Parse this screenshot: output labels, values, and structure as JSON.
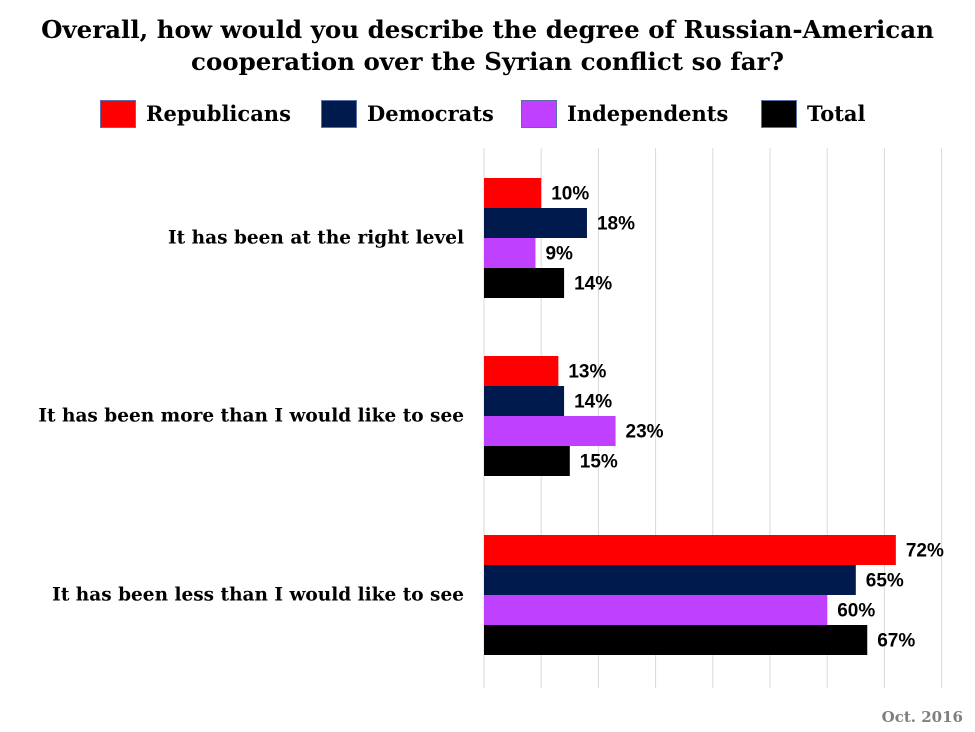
{
  "chart_data": {
    "type": "bar",
    "orientation": "horizontal",
    "title_lines": [
      "Overall, how would you describe the degree of Russian-American",
      "cooperation over the Syrian conflict so far?"
    ],
    "categories": [
      "It has been at the right level",
      "It has been more than I would like to see",
      "It has been less than I would like to see"
    ],
    "series": [
      {
        "name": "Republicans",
        "color": "#ff0000",
        "values": [
          10,
          13,
          72
        ],
        "labels": [
          "10%",
          "13%",
          "72%"
        ]
      },
      {
        "name": "Democrats",
        "color": "#001a4d",
        "values": [
          18,
          14,
          65
        ],
        "labels": [
          "18%",
          "14%",
          "65%"
        ]
      },
      {
        "name": "Independents",
        "color": "#bf40ff",
        "values": [
          9,
          23,
          60
        ],
        "labels": [
          "9%",
          "23%",
          "60%"
        ]
      },
      {
        "name": "Total",
        "color": "#000000",
        "values": [
          14,
          15,
          67
        ],
        "labels": [
          "14%",
          "15%",
          "67%"
        ]
      }
    ],
    "xlim": [
      0,
      80
    ],
    "grid": true,
    "legend_placement": "top",
    "footnote": "Oct. 2016"
  }
}
